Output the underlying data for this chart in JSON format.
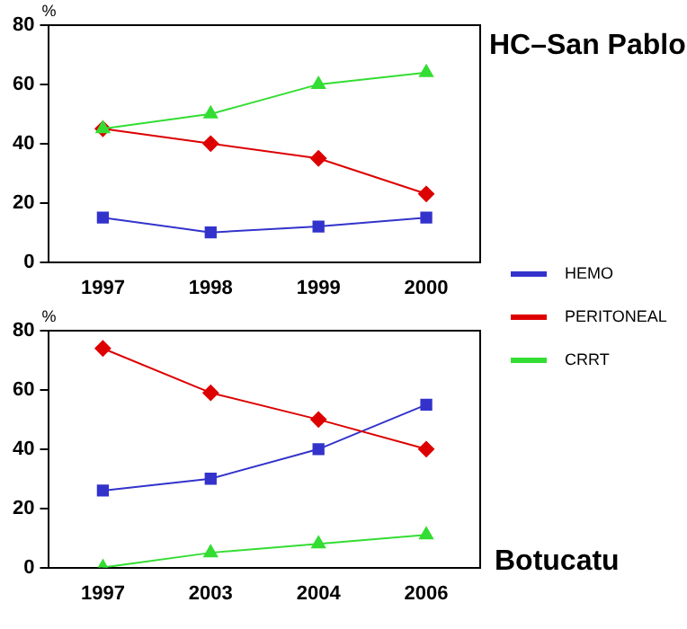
{
  "chart_data": [
    {
      "type": "line",
      "title": "HC–San Pablo",
      "ylabel": "%",
      "categories": [
        "1997",
        "1998",
        "1999",
        "2000"
      ],
      "ylim": [
        0,
        80
      ],
      "yticks": [
        0,
        20,
        40,
        60,
        80
      ],
      "grid": false,
      "legend": "bottom right",
      "series": [
        {
          "name": "HEMO",
          "color": "#3333cc",
          "marker": "square",
          "values": [
            15,
            10,
            12,
            15
          ]
        },
        {
          "name": "PERITONEAL",
          "color": "#dd0000",
          "marker": "diamond",
          "values": [
            45,
            40,
            35,
            23
          ]
        },
        {
          "name": "CRRT",
          "color": "#33dd33",
          "marker": "triangle",
          "values": [
            45,
            50,
            60,
            64
          ]
        }
      ]
    },
    {
      "type": "line",
      "title": "Botucatu",
      "ylabel": "%",
      "categories": [
        "1997",
        "2003",
        "2004",
        "2006"
      ],
      "ylim": [
        0,
        80
      ],
      "yticks": [
        0,
        20,
        40,
        60,
        80
      ],
      "grid": false,
      "series": [
        {
          "name": "HEMO",
          "color": "#3333cc",
          "marker": "square",
          "values": [
            26,
            30,
            40,
            55
          ]
        },
        {
          "name": "PERITONEAL",
          "color": "#dd0000",
          "marker": "diamond",
          "values": [
            74,
            59,
            50,
            40
          ]
        },
        {
          "name": "CRRT",
          "color": "#33dd33",
          "marker": "triangle",
          "values": [
            0,
            5,
            8,
            11
          ]
        }
      ]
    }
  ]
}
